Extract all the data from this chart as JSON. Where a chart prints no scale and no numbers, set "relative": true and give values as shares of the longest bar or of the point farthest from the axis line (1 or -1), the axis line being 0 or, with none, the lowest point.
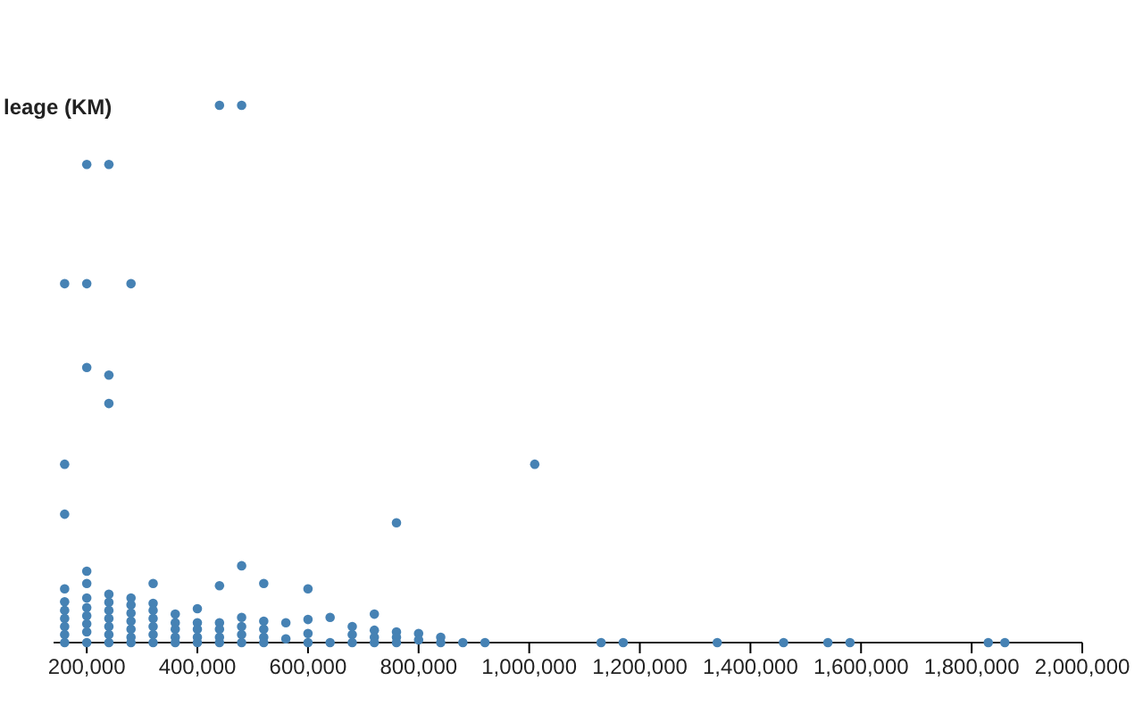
{
  "chart_data": {
    "type": "scatter",
    "ylabel": "leage (KM)",
    "relative": true,
    "color": "#4682b4",
    "marker": "circle",
    "xlim": [
      140000,
      2000000
    ],
    "xticks": [
      {
        "value": 200000,
        "label": "200,000"
      },
      {
        "value": 400000,
        "label": "400,000"
      },
      {
        "value": 600000,
        "label": "600,000"
      },
      {
        "value": 800000,
        "label": "800,000"
      },
      {
        "value": 1000000,
        "label": "1,000,000"
      },
      {
        "value": 1200000,
        "label": "1,200,000"
      },
      {
        "value": 1400000,
        "label": "1,400,000"
      },
      {
        "value": 1600000,
        "label": "1,600,000"
      },
      {
        "value": 1800000,
        "label": "1,800,000"
      },
      {
        "value": 2000000,
        "label": "2,000,000"
      }
    ],
    "x": [
      160000,
      160000,
      160000,
      160000,
      160000,
      160000,
      160000,
      160000,
      160000,
      160000,
      200000,
      200000,
      200000,
      200000,
      200000,
      200000,
      200000,
      200000,
      200000,
      200000,
      200000,
      240000,
      240000,
      240000,
      240000,
      240000,
      240000,
      240000,
      240000,
      240000,
      240000,
      280000,
      280000,
      280000,
      280000,
      280000,
      280000,
      280000,
      280000,
      320000,
      320000,
      320000,
      320000,
      320000,
      320000,
      320000,
      360000,
      360000,
      360000,
      360000,
      360000,
      400000,
      400000,
      400000,
      400000,
      400000,
      440000,
      440000,
      440000,
      440000,
      440000,
      440000,
      480000,
      480000,
      480000,
      480000,
      480000,
      480000,
      520000,
      520000,
      520000,
      520000,
      520000,
      560000,
      560000,
      600000,
      600000,
      600000,
      600000,
      640000,
      640000,
      680000,
      680000,
      680000,
      720000,
      720000,
      720000,
      720000,
      760000,
      760000,
      760000,
      760000,
      800000,
      800000,
      840000,
      840000,
      880000,
      920000,
      1010000,
      1130000,
      1170000,
      1340000,
      1460000,
      1540000,
      1580000,
      1830000,
      1860000
    ],
    "values": [
      0.668,
      0.332,
      0.239,
      0.1,
      0.076,
      0.06,
      0.045,
      0.03,
      0.015,
      0,
      0.89,
      0.668,
      0.512,
      0.133,
      0.11,
      0.083,
      0.065,
      0.05,
      0.035,
      0.02,
      0,
      0.89,
      0.498,
      0.445,
      0.09,
      0.075,
      0.06,
      0.045,
      0.03,
      0.015,
      0,
      0.668,
      0.083,
      0.07,
      0.055,
      0.04,
      0.025,
      0.01,
      0,
      0.11,
      0.073,
      0.06,
      0.045,
      0.03,
      0.015,
      0,
      0.053,
      0.037,
      0.025,
      0.01,
      0,
      0.063,
      0.037,
      0.025,
      0.01,
      0,
      1,
      0.106,
      0.037,
      0.025,
      0.01,
      0,
      1,
      0.143,
      0.047,
      0.03,
      0.015,
      0,
      0.11,
      0.04,
      0.025,
      0.01,
      0,
      0.037,
      0.007,
      0.1,
      0.043,
      0.017,
      0,
      0.047,
      0,
      0.03,
      0.015,
      0,
      0.053,
      0.023,
      0.01,
      0,
      0.223,
      0.02,
      0.01,
      0,
      0.017,
      0.005,
      0.01,
      0,
      0,
      0,
      0.332,
      0,
      0,
      0,
      0,
      0,
      0,
      0,
      0
    ]
  }
}
